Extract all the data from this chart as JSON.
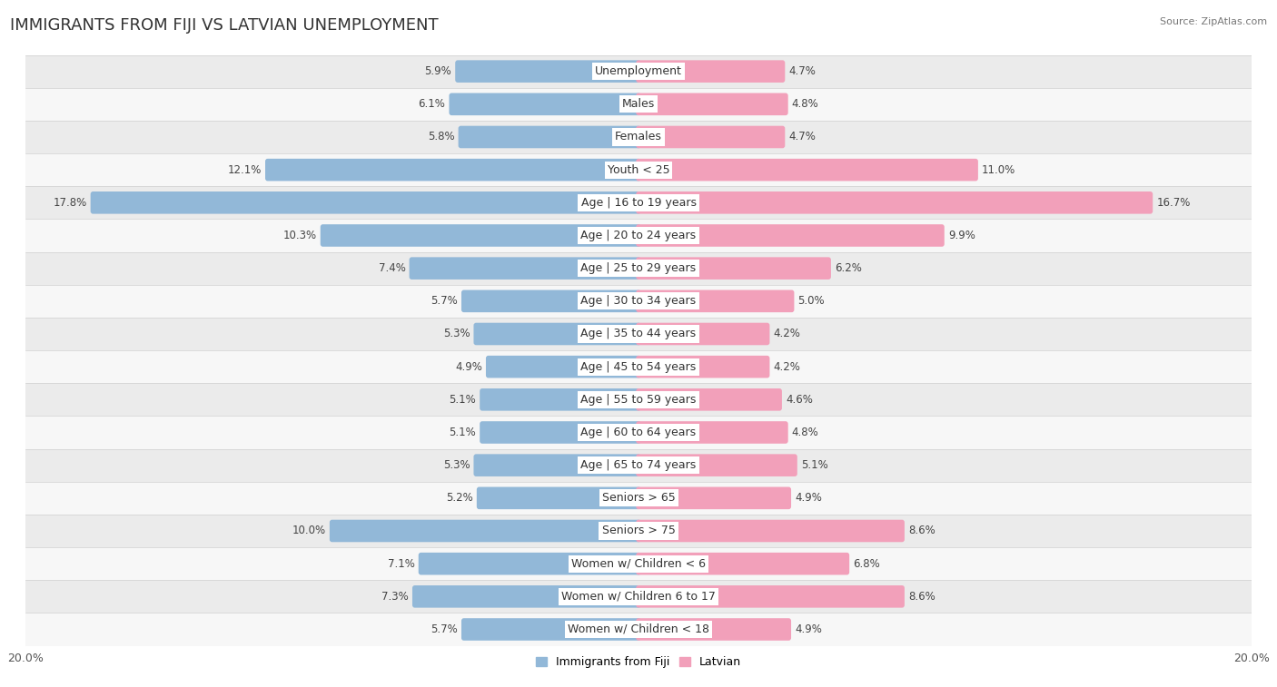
{
  "title": "IMMIGRANTS FROM FIJI VS LATVIAN UNEMPLOYMENT",
  "source": "Source: ZipAtlas.com",
  "categories": [
    "Unemployment",
    "Males",
    "Females",
    "Youth < 25",
    "Age | 16 to 19 years",
    "Age | 20 to 24 years",
    "Age | 25 to 29 years",
    "Age | 30 to 34 years",
    "Age | 35 to 44 years",
    "Age | 45 to 54 years",
    "Age | 55 to 59 years",
    "Age | 60 to 64 years",
    "Age | 65 to 74 years",
    "Seniors > 65",
    "Seniors > 75",
    "Women w/ Children < 6",
    "Women w/ Children 6 to 17",
    "Women w/ Children < 18"
  ],
  "fiji_values": [
    5.9,
    6.1,
    5.8,
    12.1,
    17.8,
    10.3,
    7.4,
    5.7,
    5.3,
    4.9,
    5.1,
    5.1,
    5.3,
    5.2,
    10.0,
    7.1,
    7.3,
    5.7
  ],
  "latvian_values": [
    4.7,
    4.8,
    4.7,
    11.0,
    16.7,
    9.9,
    6.2,
    5.0,
    4.2,
    4.2,
    4.6,
    4.8,
    5.1,
    4.9,
    8.6,
    6.8,
    8.6,
    4.9
  ],
  "fiji_color": "#92b8d8",
  "latvian_color": "#f2a0ba",
  "fiji_label": "Immigrants from Fiji",
  "latvian_label": "Latvian",
  "xlim": 20.0,
  "row_bg_light": "#f7f7f7",
  "row_bg_dark": "#ebebeb",
  "bar_height": 0.52,
  "title_fontsize": 13,
  "label_fontsize": 9,
  "value_fontsize": 8.5,
  "axis_label_fontsize": 9,
  "background_color": "#ffffff"
}
